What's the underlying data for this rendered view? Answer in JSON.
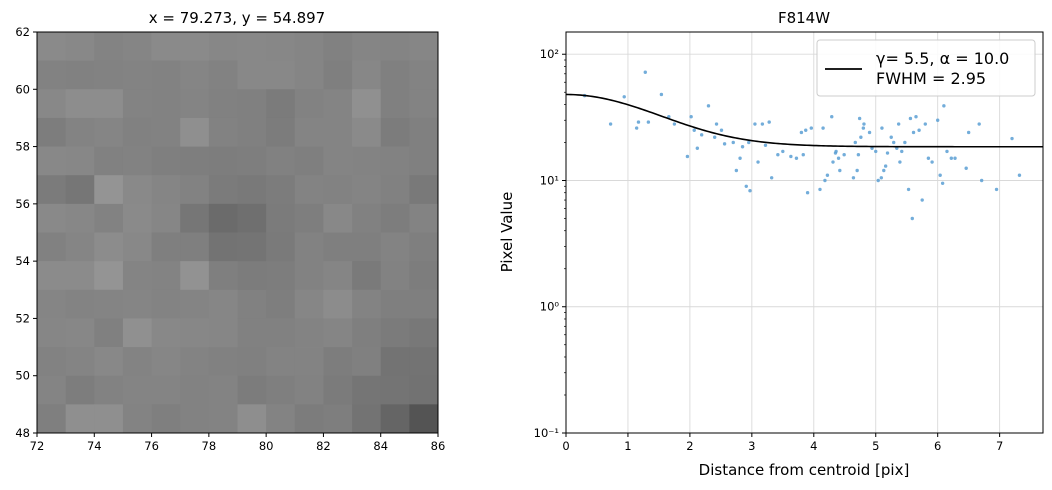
{
  "chart_data": [
    {
      "type": "heatmap",
      "title": "x = 79.273, y = 54.897",
      "xlim": [
        72,
        86
      ],
      "ylim": [
        48,
        62
      ],
      "xticks": [
        "72",
        "74",
        "76",
        "78",
        "80",
        "82",
        "84",
        "86"
      ],
      "yticks": [
        "48",
        "50",
        "52",
        "54",
        "56",
        "58",
        "60",
        "62"
      ],
      "colormap": "gray",
      "grid": false,
      "values_rows_top_to_bottom": [
        [
          138,
          136,
          131,
          133,
          138,
          138,
          135,
          136,
          135,
          133,
          129,
          133,
          132,
          134
        ],
        [
          130,
          129,
          130,
          131,
          130,
          133,
          130,
          136,
          136,
          133,
          127,
          135,
          128,
          131
        ],
        [
          136,
          141,
          141,
          131,
          130,
          132,
          129,
          128,
          123,
          130,
          132,
          144,
          128,
          131
        ],
        [
          125,
          131,
          133,
          129,
          130,
          143,
          130,
          128,
          124,
          132,
          132,
          138,
          124,
          128
        ],
        [
          136,
          135,
          129,
          130,
          127,
          126,
          125,
          126,
          129,
          127,
          132,
          131,
          130,
          128
        ],
        [
          123,
          118,
          148,
          137,
          133,
          130,
          123,
          121,
          124,
          131,
          130,
          132,
          129,
          121
        ],
        [
          137,
          135,
          130,
          138,
          134,
          118,
          107,
          111,
          123,
          126,
          136,
          129,
          125,
          131
        ],
        [
          129,
          133,
          140,
          136,
          127,
          127,
          115,
          116,
          122,
          130,
          127,
          127,
          131,
          127
        ],
        [
          139,
          139,
          148,
          132,
          131,
          146,
          127,
          124,
          125,
          130,
          133,
          122,
          130,
          125
        ],
        [
          133,
          131,
          132,
          133,
          131,
          132,
          134,
          129,
          126,
          134,
          140,
          131,
          127,
          127
        ],
        [
          134,
          135,
          128,
          144,
          136,
          135,
          134,
          129,
          129,
          131,
          133,
          127,
          123,
          120
        ],
        [
          130,
          132,
          136,
          131,
          134,
          131,
          129,
          128,
          131,
          131,
          125,
          128,
          115,
          115
        ],
        [
          132,
          125,
          130,
          132,
          132,
          130,
          131,
          124,
          127,
          130,
          123,
          117,
          116,
          114
        ],
        [
          127,
          143,
          143,
          131,
          127,
          130,
          131,
          142,
          131,
          124,
          126,
          115,
          101,
          84
        ]
      ]
    },
    {
      "type": "scatter",
      "title": "F814W",
      "xlabel": "Distance from centroid [pix]",
      "ylabel": "Pixel Value",
      "xlim": [
        0,
        7.7
      ],
      "ylim": [
        0.1,
        150
      ],
      "yscale": "log",
      "xticks": [
        "0",
        "1",
        "2",
        "3",
        "4",
        "5",
        "6",
        "7"
      ],
      "yticks": [
        "10⁻¹",
        "10⁰",
        "10¹",
        "10²"
      ],
      "grid": true,
      "legend": {
        "placement": "top-right",
        "lines": [
          "γ= 5.5, α = 10.0",
          "FWHM = 2.95"
        ]
      },
      "model_curve": {
        "gamma": 5.5,
        "alpha": 10.0,
        "amplitude": 29.5,
        "background": 18.5,
        "fwhm": 2.95
      },
      "points": {
        "x": [
          0.3,
          0.72,
          0.94,
          1.14,
          1.17,
          1.28,
          1.33,
          1.54,
          1.66,
          1.75,
          1.96,
          2.02,
          2.07,
          2.12,
          2.19,
          2.3,
          2.4,
          2.43,
          2.51,
          2.56,
          2.7,
          2.75,
          2.81,
          2.85,
          2.91,
          2.95,
          2.97,
          3.05,
          3.1,
          3.17,
          3.22,
          3.28,
          3.32,
          3.42,
          3.5,
          3.63,
          3.72,
          3.8,
          3.83,
          3.87,
          3.9,
          3.96,
          4.1,
          4.15,
          4.18,
          4.22,
          4.29,
          4.31,
          4.35,
          4.36,
          4.4,
          4.42,
          4.49,
          4.64,
          4.67,
          4.7,
          4.72,
          4.74,
          4.76,
          4.8,
          4.81,
          4.9,
          4.94,
          5.0,
          5.04,
          5.09,
          5.1,
          5.13,
          5.16,
          5.19,
          5.25,
          5.29,
          5.34,
          5.37,
          5.39,
          5.42,
          5.47,
          5.53,
          5.56,
          5.59,
          5.61,
          5.65,
          5.7,
          5.75,
          5.8,
          5.85,
          5.91,
          6.0,
          6.04,
          6.08,
          6.1,
          6.15,
          6.22,
          6.28,
          6.46,
          6.5,
          6.67,
          6.71,
          6.95,
          7.2,
          7.32
        ],
        "y": [
          47,
          28,
          46,
          26,
          29,
          72,
          29,
          48,
          32,
          28,
          15.5,
          32,
          25,
          18,
          23,
          39,
          22,
          28,
          25,
          19.5,
          20,
          12,
          15,
          18.5,
          9,
          20,
          8.3,
          28,
          14,
          28,
          19,
          29,
          10.5,
          16,
          17,
          15.5,
          15,
          24,
          16,
          25,
          8,
          26,
          8.5,
          26,
          10,
          11,
          32,
          14,
          16.5,
          17,
          15,
          12,
          16,
          10.5,
          20,
          12,
          16,
          31,
          22,
          26,
          28,
          24,
          18,
          17,
          10,
          10.5,
          26,
          12,
          13,
          16.5,
          22,
          20,
          18,
          28,
          14,
          17,
          20,
          8.5,
          31,
          5,
          24,
          32,
          25,
          7,
          28,
          15,
          14,
          30,
          11,
          9.5,
          39,
          17,
          15,
          15,
          12.5,
          24,
          28,
          10,
          8.5,
          21.5,
          11
        ]
      }
    }
  ]
}
